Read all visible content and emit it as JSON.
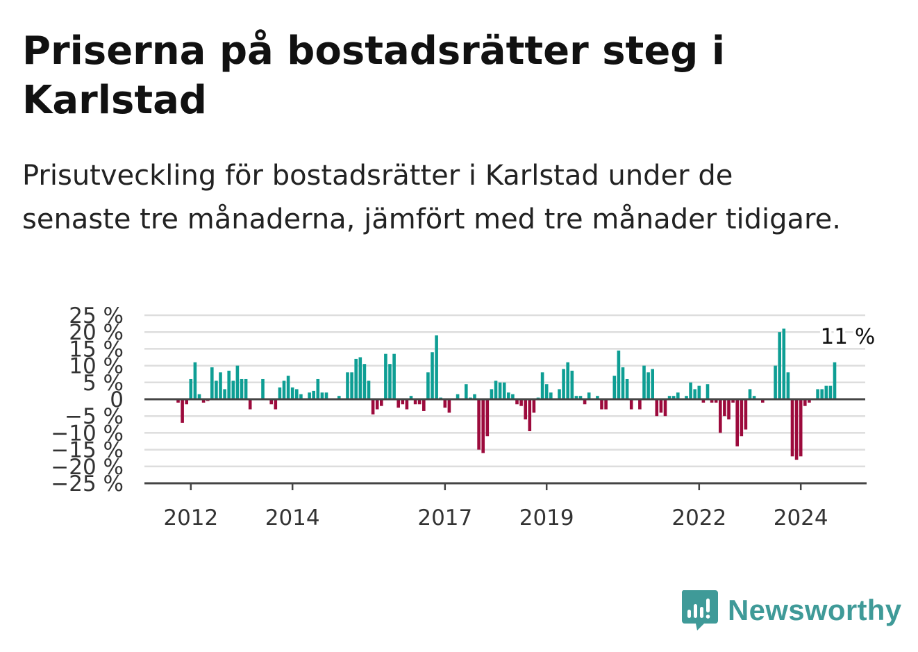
{
  "title": "Priserna på bostadsrätter steg i Karlstad",
  "subtitle": "Prisutveckling för bostadsrätter i Karlstad under de senaste tre månaderna, jämfört med tre månader tidigare.",
  "brand": {
    "name": "Newsworthy",
    "color": "#3f9a98"
  },
  "colors": {
    "positive": "#0e9e94",
    "negative": "#9c0a3c",
    "grid": "#dddddd",
    "axis": "#444444"
  },
  "chart_data": {
    "type": "bar",
    "x_ticks": [
      "2012",
      "2014",
      "2017",
      "2019",
      "2022",
      "2024"
    ],
    "x_tick_index": [
      3,
      27,
      63,
      87,
      123,
      147
    ],
    "y_ticks": [
      25,
      20,
      15,
      10,
      5,
      0,
      -5,
      -10,
      -15,
      -20,
      -25
    ],
    "y_tick_labels": [
      "25 %",
      "20 %",
      "15 %",
      "10 %",
      "5 %",
      "0",
      "−5 %",
      "−10 %",
      "−15 %",
      "−20 %",
      "−25 %"
    ],
    "ylim": [
      -25,
      25
    ],
    "grid": true,
    "annotation": {
      "text": "11 %",
      "index": 158,
      "value": 11
    },
    "values": [
      -1,
      -7,
      -1.5,
      6,
      11,
      1.5,
      -1,
      -0.5,
      9.5,
      5.5,
      8,
      3,
      8.5,
      5.5,
      10,
      6,
      6,
      -3,
      0,
      0,
      6,
      0,
      -1.5,
      -3,
      3.5,
      5.5,
      7,
      3.5,
      3,
      1.5,
      0,
      2,
      2.5,
      6,
      2,
      2,
      0,
      0,
      1,
      0,
      8,
      8,
      12,
      12.5,
      10.5,
      5.5,
      -4.5,
      -3,
      -2,
      13.5,
      10.5,
      13.5,
      -2.5,
      -1.5,
      -3,
      1,
      -1.5,
      -1.5,
      -3.5,
      8,
      14,
      19,
      0.5,
      -2.5,
      -4,
      0,
      1.5,
      0,
      4.5,
      0.5,
      1.5,
      -15,
      -16,
      -11,
      3,
      5.5,
      5,
      5,
      2,
      1.5,
      -1.5,
      -2,
      -6,
      -9.5,
      -4,
      0.5,
      8,
      4.5,
      2,
      0,
      3,
      9,
      11,
      8.5,
      1,
      1,
      -1.5,
      2,
      0,
      1,
      -3,
      -3,
      0,
      7,
      14.5,
      9.5,
      6,
      -3,
      0,
      -3,
      10,
      8,
      9,
      -5,
      -4,
      -5,
      1,
      1,
      2,
      0,
      1,
      5,
      3,
      4,
      -1,
      4.5,
      -1,
      -1,
      -10,
      -5,
      -6,
      -1,
      -14,
      -11,
      -9,
      3,
      1,
      0,
      -1,
      0,
      0,
      10,
      20,
      21,
      8,
      -17,
      -18,
      -17,
      -2,
      -1,
      0,
      3,
      3,
      4,
      4,
      11
    ]
  }
}
